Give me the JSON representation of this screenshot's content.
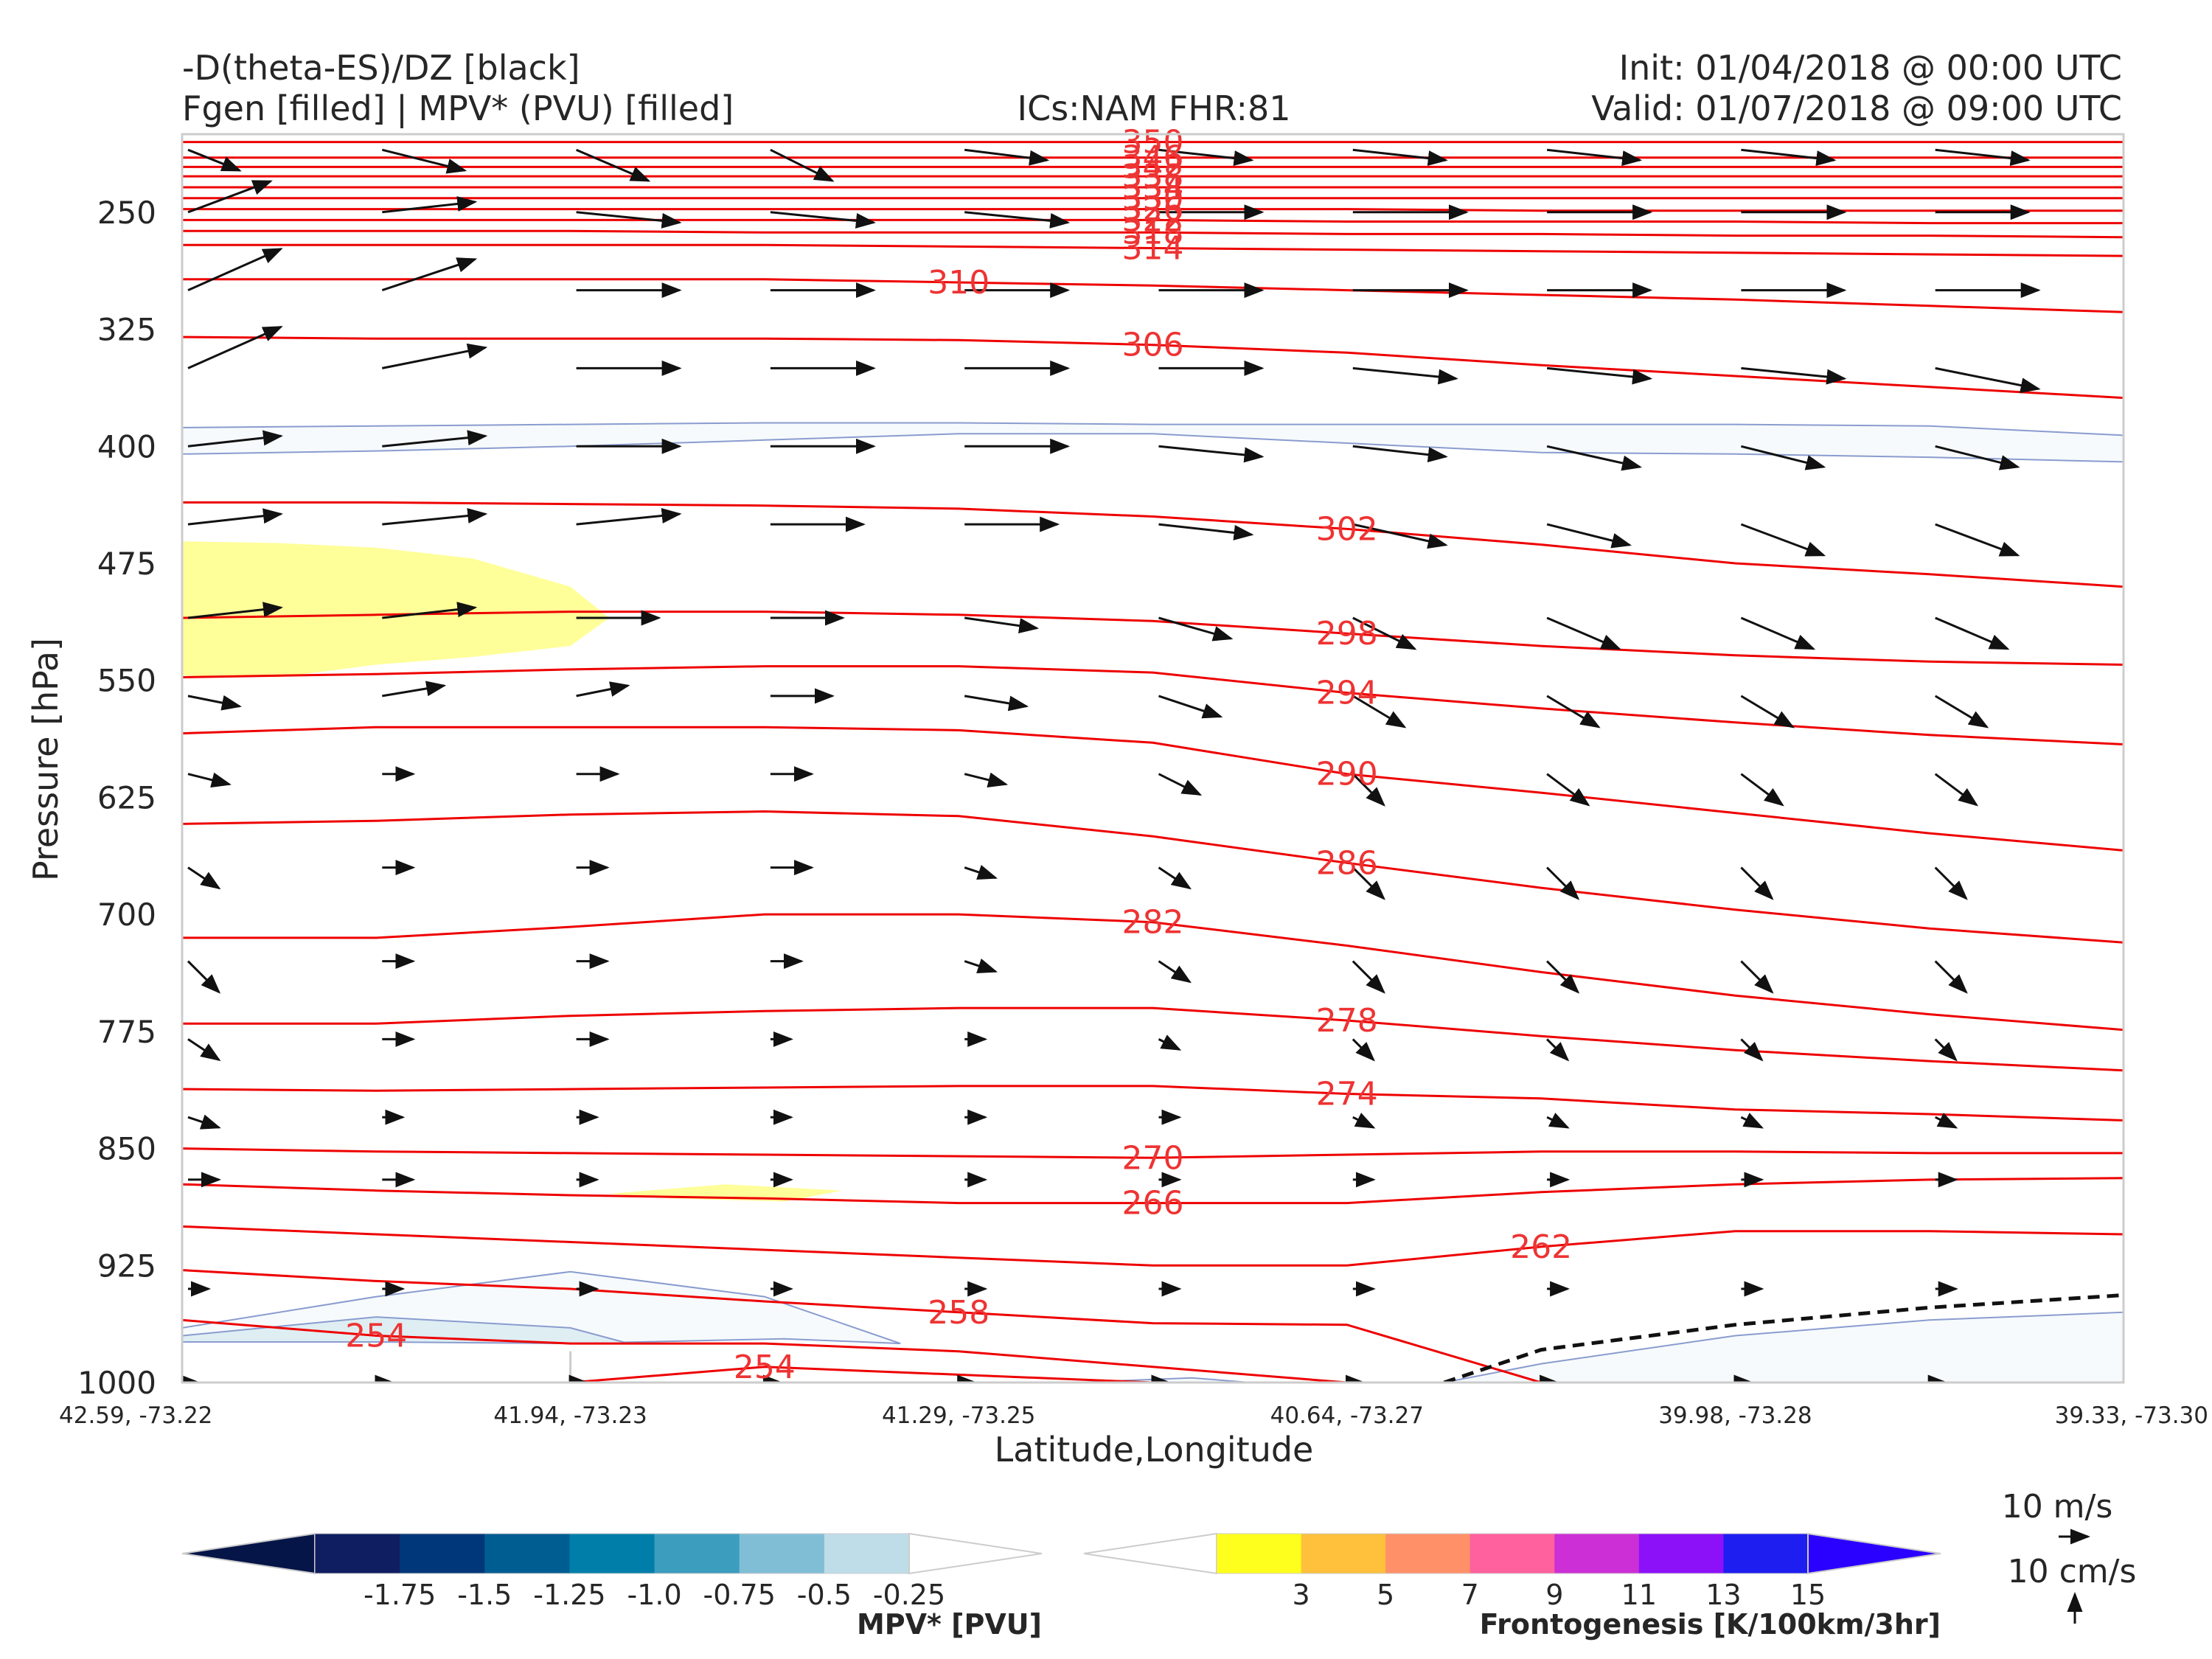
{
  "header": {
    "line1_left": "-D(theta-ES)/DZ [black]",
    "line2_left": "Fgen [filled] | MPV* (PVU) [filled]",
    "center": "ICs:NAM FHR:81",
    "init": "Init: 01/04/2018 @ 00:00 UTC",
    "valid": "Valid: 01/07/2018 @ 09:00 UTC"
  },
  "chart_data": {
    "type": "cross-section",
    "ylabel": "Pressure [hPa]",
    "xlabel": "Latitude,Longitude",
    "y_inverted": true,
    "ylim": [
      1000,
      200
    ],
    "yticks": [
      250,
      325,
      400,
      475,
      550,
      625,
      700,
      775,
      850,
      925,
      1000
    ],
    "x": [
      0,
      1,
      2,
      3,
      4,
      5,
      6,
      7,
      8,
      9,
      10
    ],
    "xtick_positions": [
      0,
      2,
      4,
      6,
      8,
      10
    ],
    "xtick_labels": [
      "42.59, -73.22",
      "41.94, -73.23",
      "41.29, -73.25",
      "40.64, -73.27",
      "39.98, -73.28",
      "39.33, -73.30"
    ],
    "theta_contours": [
      {
        "label": "254",
        "p": [
          960,
          970,
          975,
          975,
          980,
          990,
          1000,
          1000,
          1000,
          1000,
          1000
        ]
      },
      {
        "label": "254",
        "p": [
          1000,
          1000,
          1000,
          990,
          995,
          1000,
          1000,
          1000,
          1000,
          1000,
          1000
        ]
      },
      {
        "label": "258",
        "p": [
          928,
          935,
          940,
          948,
          955,
          962,
          963,
          1000,
          1000,
          1000,
          1000
        ]
      },
      {
        "label": "262",
        "p": [
          900,
          905,
          910,
          915,
          920,
          925,
          925,
          913,
          903,
          903,
          905
        ]
      },
      {
        "label": "266",
        "p": [
          873,
          877,
          880,
          882,
          885,
          885,
          885,
          878,
          873,
          870,
          869
        ]
      },
      {
        "label": "270",
        "p": [
          850,
          852,
          853,
          854,
          855,
          856,
          854,
          852,
          852,
          853,
          853
        ]
      },
      {
        "label": "274",
        "p": [
          812,
          813,
          812,
          811,
          810,
          810,
          815,
          818,
          825,
          828,
          832
        ]
      },
      {
        "label": "278",
        "p": [
          770,
          770,
          765,
          762,
          760,
          760,
          768,
          778,
          787,
          794,
          800
        ]
      },
      {
        "label": "282",
        "p": [
          715,
          715,
          708,
          700,
          700,
          705,
          720,
          737,
          752,
          764,
          774
        ]
      },
      {
        "label": "286",
        "p": [
          642,
          640,
          636,
          634,
          637,
          650,
          667,
          683,
          697,
          709,
          718
        ]
      },
      {
        "label": "290",
        "p": [
          584,
          580,
          580,
          580,
          582,
          590,
          610,
          622,
          635,
          648,
          659
        ]
      },
      {
        "label": "294",
        "p": [
          548,
          546,
          543,
          541,
          541,
          545,
          558,
          568,
          577,
          585,
          591
        ]
      },
      {
        "label": "298",
        "p": [
          510,
          508,
          506,
          506,
          508,
          512,
          520,
          528,
          534,
          538,
          540
        ]
      },
      {
        "label": "302",
        "p": [
          436,
          436,
          437,
          438,
          440,
          445,
          453,
          463,
          475,
          482,
          490
        ]
      },
      {
        "label": "306",
        "p": [
          330,
          331,
          331,
          331,
          332,
          335,
          340,
          348,
          355,
          362,
          369
        ]
      },
      {
        "label": "310",
        "p": [
          293,
          293,
          293,
          293,
          295,
          297,
          300,
          303,
          306,
          310,
          314
        ]
      },
      {
        "label": "314",
        "p": [
          271,
          271,
          271,
          271,
          272,
          273,
          274,
          275,
          276,
          277,
          278
        ]
      },
      {
        "label": "318",
        "p": [
          262,
          262,
          262,
          263,
          263,
          263,
          264,
          264,
          265,
          265,
          266
        ]
      },
      {
        "label": "322",
        "p": [
          255,
          255,
          255,
          255,
          255,
          255,
          256,
          256,
          256,
          257,
          257
        ]
      },
      {
        "label": "326",
        "p": [
          248,
          248,
          248,
          248,
          248,
          248,
          248,
          249,
          249,
          249,
          249
        ]
      },
      {
        "label": "330",
        "p": [
          241,
          241,
          241,
          241,
          241,
          241,
          241,
          241,
          241,
          241,
          241
        ]
      },
      {
        "label": "334",
        "p": [
          234,
          234,
          234,
          234,
          234,
          234,
          234,
          234,
          234,
          234,
          234
        ]
      },
      {
        "label": "338",
        "p": [
          227,
          227,
          227,
          227,
          227,
          227,
          227,
          227,
          227,
          227,
          227
        ]
      },
      {
        "label": "342",
        "p": [
          221,
          221,
          221,
          221,
          221,
          221,
          221,
          221,
          221,
          221,
          221
        ]
      },
      {
        "label": "346",
        "p": [
          215,
          215,
          215,
          215,
          215,
          215,
          215,
          215,
          215,
          215,
          215
        ]
      },
      {
        "label": "350",
        "p": [
          205,
          205,
          205,
          205,
          205,
          205,
          205,
          205,
          205,
          205,
          205
        ]
      }
    ],
    "wind_vectors": {
      "x": [
        0,
        1,
        2,
        3,
        4,
        5,
        6,
        7,
        8,
        9
      ],
      "p": [
        210,
        250,
        300,
        350,
        400,
        450,
        510,
        560,
        610,
        670,
        730,
        780,
        830,
        870,
        940,
        1000
      ],
      "u": [
        [
          5,
          8,
          7,
          6,
          8,
          9,
          9,
          9,
          9,
          9
        ],
        [
          8,
          9,
          10,
          10,
          10,
          10,
          11,
          10,
          10,
          9
        ],
        [
          9,
          9,
          10,
          10,
          10,
          10,
          11,
          10,
          10,
          10
        ],
        [
          9,
          10,
          10,
          10,
          10,
          10,
          10,
          10,
          10,
          10
        ],
        [
          9,
          10,
          10,
          10,
          10,
          10,
          9,
          9,
          8,
          8
        ],
        [
          9,
          10,
          10,
          9,
          9,
          9,
          9,
          8,
          8,
          8
        ],
        [
          9,
          9,
          8,
          7,
          7,
          7,
          6,
          7,
          7,
          7
        ],
        [
          5,
          6,
          5,
          6,
          6,
          6,
          5,
          5,
          5,
          5
        ],
        [
          4,
          3,
          4,
          4,
          4,
          4,
          3,
          4,
          4,
          4
        ],
        [
          3,
          3,
          3,
          4,
          3,
          3,
          3,
          3,
          3,
          3
        ],
        [
          3,
          3,
          3,
          3,
          3,
          3,
          3,
          3,
          3,
          3
        ],
        [
          3,
          3,
          3,
          2,
          2,
          2,
          2,
          2,
          2,
          2
        ],
        [
          3,
          2,
          2,
          2,
          2,
          2,
          2,
          2,
          2,
          2
        ],
        [
          3,
          3,
          2,
          2,
          2,
          2,
          2,
          2,
          2,
          2
        ],
        [
          2,
          2,
          2,
          2,
          2,
          2,
          2,
          2,
          2,
          2
        ],
        [
          1,
          1,
          1,
          1,
          1,
          1,
          1,
          1,
          1,
          1
        ]
      ],
      "w": [
        [
          -2,
          -2,
          -3,
          -3,
          -1,
          -1,
          -1,
          -1,
          -1,
          -1
        ],
        [
          3,
          1,
          -1,
          -1,
          -1,
          0,
          0,
          0,
          0,
          0
        ],
        [
          4,
          3,
          0,
          0,
          0,
          0,
          0,
          0,
          0,
          0
        ],
        [
          4,
          2,
          0,
          0,
          0,
          0,
          -1,
          -1,
          -1,
          -2
        ],
        [
          1,
          1,
          0,
          0,
          0,
          -1,
          -1,
          -2,
          -2,
          -2
        ],
        [
          1,
          1,
          1,
          0,
          0,
          -1,
          -2,
          -2,
          -3,
          -3
        ],
        [
          1,
          1,
          0,
          0,
          -1,
          -2,
          -3,
          -3,
          -3,
          -3
        ],
        [
          -1,
          1,
          1,
          0,
          -1,
          -2,
          -3,
          -3,
          -3,
          -3
        ],
        [
          -1,
          0,
          0,
          0,
          -1,
          -2,
          -3,
          -3,
          -3,
          -3
        ],
        [
          -2,
          0,
          0,
          0,
          -1,
          -2,
          -3,
          -3,
          -3,
          -3
        ],
        [
          -3,
          0,
          0,
          0,
          -1,
          -2,
          -3,
          -3,
          -3,
          -3
        ],
        [
          -2,
          0,
          0,
          0,
          0,
          -1,
          -2,
          -2,
          -2,
          -2
        ],
        [
          -1,
          0,
          0,
          0,
          0,
          0,
          -1,
          -1,
          -1,
          -1
        ],
        [
          0,
          0,
          0,
          0,
          0,
          0,
          0,
          0,
          0,
          0
        ],
        [
          0,
          0,
          0,
          0,
          0,
          0,
          0,
          0,
          0,
          0
        ],
        [
          0,
          0,
          0,
          0,
          0,
          0,
          0,
          0,
          0,
          0
        ]
      ]
    },
    "mpv_regions": [
      {
        "level": "-0.25",
        "color": "#f6fafc",
        "x": [
          0,
          1,
          2,
          3,
          4,
          5,
          6,
          7,
          8,
          9,
          10,
          10,
          9,
          8,
          7,
          6,
          5,
          4,
          3,
          2,
          1,
          0
        ],
        "p": [
          388,
          387,
          386,
          385,
          385,
          386,
          386,
          386,
          386,
          387,
          393,
          410,
          407,
          405,
          404,
          398,
          392,
          392,
          396,
          400,
          403,
          405
        ]
      },
      {
        "level": "-0.25",
        "color": "#f6fafc",
        "x": [
          0,
          1,
          2,
          3,
          3.7,
          3.1,
          2,
          1,
          0
        ],
        "p": [
          965,
          945,
          929,
          945,
          975,
          972,
          975,
          970,
          970
        ]
      },
      {
        "level": "-0.5",
        "color": "#deeef3",
        "x": [
          0,
          1,
          2,
          2.3,
          2,
          1,
          0
        ],
        "p": [
          970,
          958,
          965,
          975,
          975,
          974,
          974
        ]
      },
      {
        "level": "-0.25",
        "color": "#f6fafc",
        "x": [
          6.5,
          7,
          8,
          9,
          10,
          10,
          6.5
        ],
        "p": [
          1000,
          988,
          970,
          960,
          955,
          1000,
          1000
        ]
      },
      {
        "level": "-0.25",
        "color": "#f6fafc",
        "x": [
          4.6,
          5.2,
          5.5,
          4.6
        ],
        "p": [
          1000,
          997,
          1000,
          1000
        ]
      }
    ],
    "fgen_regions": [
      {
        "level": "3",
        "color": "#ffff99",
        "x": [
          0,
          0.5,
          1,
          1.5,
          2,
          2.2,
          2,
          1.5,
          1,
          0.5,
          0
        ],
        "p": [
          461,
          462,
          465,
          472,
          490,
          510,
          528,
          535,
          540,
          548,
          547
        ]
      },
      {
        "level": "3",
        "color": "#ffff99",
        "x": [
          2.2,
          2.8,
          3.4,
          3.1,
          2.5,
          2.2
        ],
        "p": [
          879,
          873,
          877,
          884,
          882,
          879
        ]
      }
    ],
    "stability_contour": {
      "style": "dashed",
      "x": [
        6.5,
        7,
        8,
        9,
        9.5,
        10
      ],
      "p": [
        1000,
        979,
        963,
        952,
        948,
        944
      ]
    },
    "wind_reference": {
      "horizontal": "10 m/s",
      "vertical": "10 cm/s"
    },
    "colorbars": [
      {
        "name": "MPV* [PVU]",
        "colors": [
          "#ffffff",
          "#bedde8",
          "#80bed6",
          "#3c9dbe",
          "#007eaa",
          "#005d92",
          "#00377a",
          "#0f1e61",
          "#061548"
        ],
        "tick_labels": [
          "-1.75",
          "-1.5",
          "-1.25",
          "-1.0",
          "-0.75",
          "-0.5",
          "-0.25"
        ]
      },
      {
        "name": "Frontogenesis [K/100km/3hr]",
        "colors": [
          "#ffffff",
          "#ffff1e",
          "#ffc03c",
          "#ff9068",
          "#ff609e",
          "#cc2fd6",
          "#8c11f9",
          "#1e1ef0",
          "#2a00ff"
        ],
        "tick_labels": [
          "3",
          "5",
          "7",
          "9",
          "11",
          "13",
          "15"
        ]
      }
    ]
  }
}
